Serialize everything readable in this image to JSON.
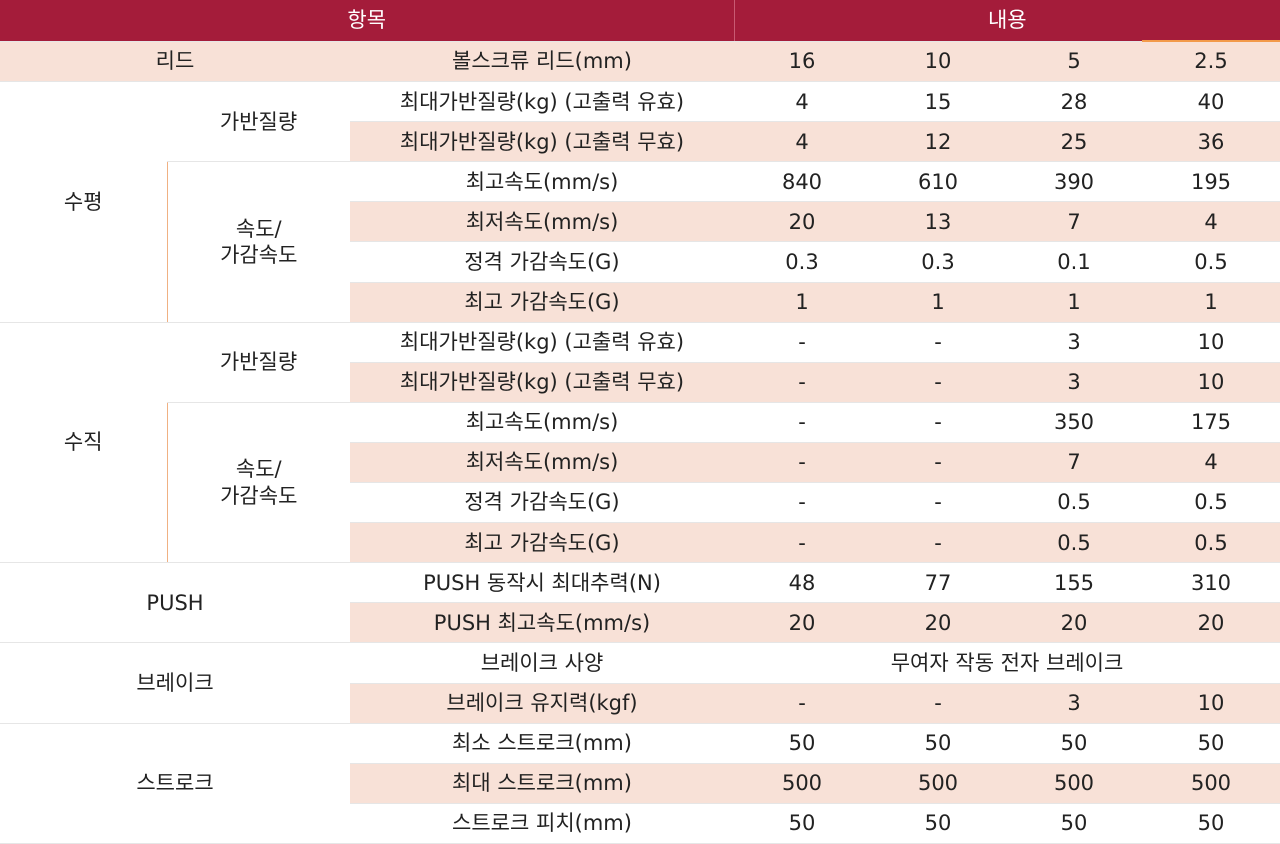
{
  "header": {
    "item": "항목",
    "content": "내용"
  },
  "rows": [
    {
      "cat": "리드",
      "label": "볼스크류 리드(mm)",
      "v": [
        "16",
        "10",
        "5",
        "2.5"
      ]
    },
    {
      "cat": "수평",
      "sub": "가반질량",
      "label": "최대가반질량(kg) (고출력 유효)",
      "v": [
        "4",
        "15",
        "28",
        "40"
      ]
    },
    {
      "label": "최대가반질량(kg) (고출력 무효)",
      "v": [
        "4",
        "12",
        "25",
        "36"
      ]
    },
    {
      "sub": "속도/\n가감속도",
      "label": "최고속도(mm/s)",
      "v": [
        "840",
        "610",
        "390",
        "195"
      ]
    },
    {
      "label": "최저속도(mm/s)",
      "v": [
        "20",
        "13",
        "7",
        "4"
      ]
    },
    {
      "label": "정격 가감속도(G)",
      "v": [
        "0.3",
        "0.3",
        "0.1",
        "0.5"
      ]
    },
    {
      "label": "최고 가감속도(G)",
      "v": [
        "1",
        "1",
        "1",
        "1"
      ]
    },
    {
      "cat": "수직",
      "sub": "가반질량",
      "label": "최대가반질량(kg) (고출력 유효)",
      "v": [
        "-",
        "-",
        "3",
        "10"
      ]
    },
    {
      "label": "최대가반질량(kg) (고출력 무효)",
      "v": [
        "-",
        "-",
        "3",
        "10"
      ]
    },
    {
      "sub": "속도/\n가감속도",
      "label": "최고속도(mm/s)",
      "v": [
        "-",
        "-",
        "350",
        "175"
      ]
    },
    {
      "label": "최저속도(mm/s)",
      "v": [
        "-",
        "-",
        "7",
        "4"
      ]
    },
    {
      "label": "정격 가감속도(G)",
      "v": [
        "-",
        "-",
        "0.5",
        "0.5"
      ]
    },
    {
      "label": "최고 가감속도(G)",
      "v": [
        "-",
        "-",
        "0.5",
        "0.5"
      ]
    },
    {
      "cat": "PUSH",
      "label": "PUSH 동작시 최대추력(N)",
      "v": [
        "48",
        "77",
        "155",
        "310"
      ]
    },
    {
      "label": "PUSH 최고속도(mm/s)",
      "v": [
        "20",
        "20",
        "20",
        "20"
      ]
    },
    {
      "cat": "브레이크",
      "label": "브레이크 사양",
      "merged": "무여자 작동 전자 브레이크"
    },
    {
      "label": "브레이크 유지력(kgf)",
      "v": [
        "-",
        "-",
        "3",
        "10"
      ]
    },
    {
      "cat": "스트로크",
      "label": "최소 스트로크(mm)",
      "v": [
        "50",
        "50",
        "50",
        "50"
      ]
    },
    {
      "label": "최대 스트로크(mm)",
      "v": [
        "500",
        "500",
        "500",
        "500"
      ]
    },
    {
      "label": "스트로크 피치(mm)",
      "v": [
        "50",
        "50",
        "50",
        "50"
      ]
    }
  ]
}
